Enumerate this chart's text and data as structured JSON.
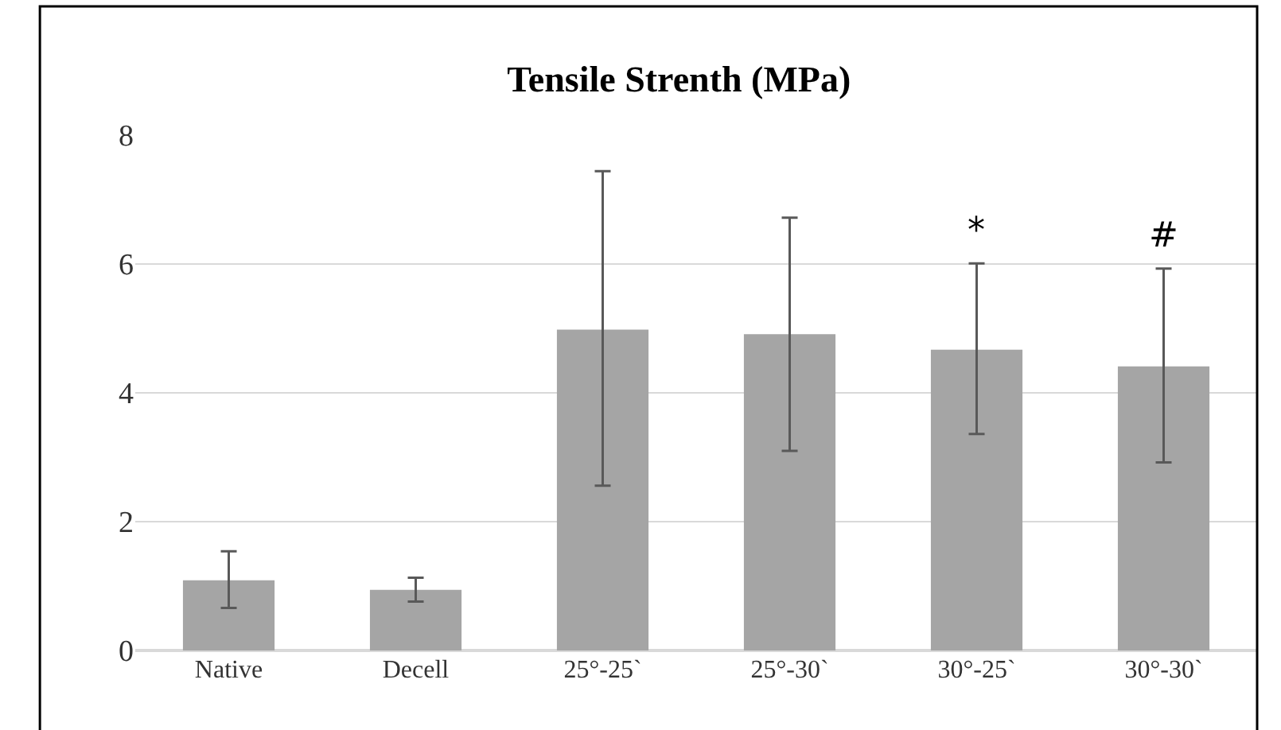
{
  "chart_data": {
    "type": "bar",
    "title": "Tensile Strenth (MPa)",
    "categories": [
      "Native",
      "Decell",
      "25°-25`",
      "25°-30`",
      "30°-25`",
      "30°-30`"
    ],
    "values": [
      1.09,
      0.94,
      4.98,
      4.91,
      4.67,
      4.41
    ],
    "errors": [
      [
        0.66,
        1.54
      ],
      [
        0.76,
        1.13
      ],
      [
        2.56,
        7.44
      ],
      [
        3.1,
        6.72
      ],
      [
        3.36,
        6.01
      ],
      [
        2.92,
        5.93
      ]
    ],
    "color": "#a5a5a5",
    "ylim": [
      0,
      8
    ],
    "yticks": [
      0,
      2,
      4,
      6,
      8
    ],
    "grid": "y",
    "annotations": [
      "*",
      "#"
    ]
  }
}
